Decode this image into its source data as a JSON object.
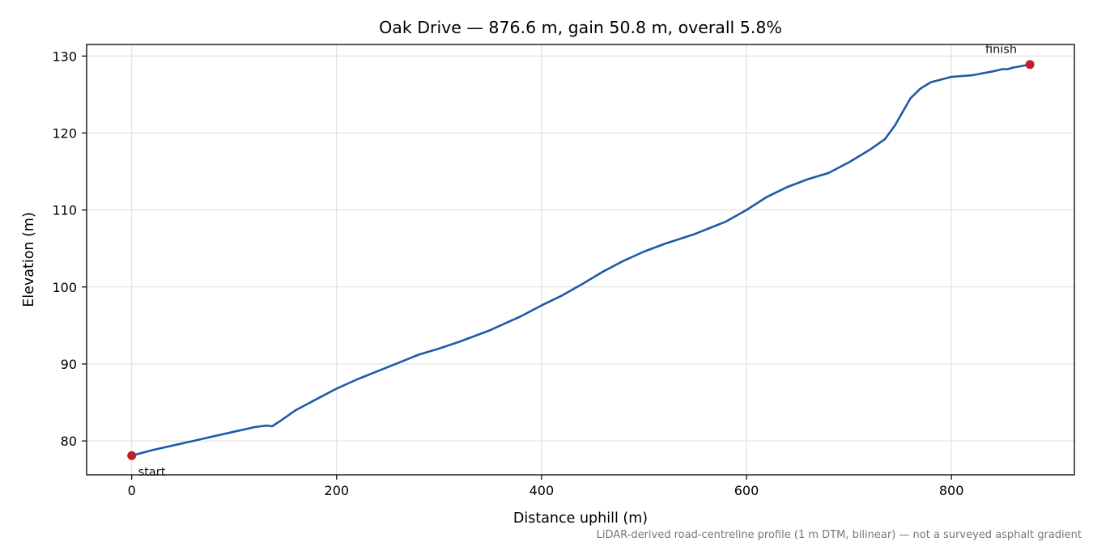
{
  "chart_data": {
    "type": "line",
    "title": "Oak Drive — 876.6 m, gain 50.8 m, overall 5.8%",
    "xlabel": "Distance uphill (m)",
    "ylabel": "Elevation (m)",
    "xlim": [
      -44,
      920
    ],
    "ylim": [
      75.6,
      131.5
    ],
    "xticks": [
      0,
      200,
      400,
      600,
      800
    ],
    "yticks": [
      80,
      90,
      100,
      110,
      120,
      130
    ],
    "grid": true,
    "footnote": "LiDAR-derived road-centreline profile (1 m DTM, bilinear) — not a surveyed asphalt gradient",
    "series": [
      {
        "color": "#1f5aa8",
        "x": [
          0,
          20,
          40,
          60,
          80,
          100,
          120,
          132,
          137,
          145,
          160,
          180,
          200,
          220,
          250,
          280,
          300,
          320,
          350,
          380,
          400,
          420,
          440,
          460,
          480,
          500,
          520,
          550,
          580,
          600,
          620,
          640,
          660,
          680,
          700,
          720,
          735,
          745,
          760,
          770,
          780,
          800,
          820,
          840,
          850,
          855,
          860,
          876.6
        ],
        "y": [
          78.1,
          78.8,
          79.4,
          80.0,
          80.6,
          81.2,
          81.8,
          82.0,
          81.9,
          82.6,
          84.0,
          85.4,
          86.8,
          88.0,
          89.6,
          91.2,
          92.0,
          92.9,
          94.4,
          96.2,
          97.6,
          98.9,
          100.4,
          102.0,
          103.4,
          104.6,
          105.6,
          106.9,
          108.5,
          110.0,
          111.7,
          113.0,
          114.0,
          114.8,
          116.2,
          117.8,
          119.2,
          121.0,
          124.5,
          125.8,
          126.6,
          127.3,
          127.5,
          128.0,
          128.3,
          128.3,
          128.5,
          128.9
        ]
      }
    ],
    "markers": [
      {
        "label": "start",
        "x": 0,
        "y": 78.1,
        "color": "#c0202a"
      },
      {
        "label": "finish",
        "x": 876.6,
        "y": 128.9,
        "color": "#c0202a"
      }
    ]
  }
}
